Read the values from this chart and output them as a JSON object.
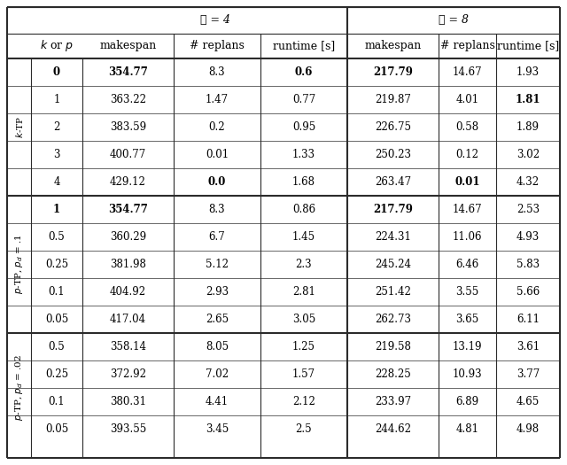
{
  "title_l4": "ℓ = 4",
  "title_l8": "ℓ = 8",
  "rows": [
    {
      "group": 0,
      "k_or_p": "0",
      "l4_makespan": "354.77",
      "l4_replans": "8.3",
      "l4_runtime": "0.6",
      "l8_makespan": "217.79",
      "l8_replans": "14.67",
      "l8_runtime": "1.93",
      "bold": [
        "l4_makespan",
        "l4_runtime",
        "l8_makespan"
      ]
    },
    {
      "group": 0,
      "k_or_p": "1",
      "l4_makespan": "363.22",
      "l4_replans": "1.47",
      "l4_runtime": "0.77",
      "l8_makespan": "219.87",
      "l8_replans": "4.01",
      "l8_runtime": "1.81",
      "bold": [
        "l8_runtime"
      ]
    },
    {
      "group": 0,
      "k_or_p": "2",
      "l4_makespan": "383.59",
      "l4_replans": "0.2",
      "l4_runtime": "0.95",
      "l8_makespan": "226.75",
      "l8_replans": "0.58",
      "l8_runtime": "1.89",
      "bold": []
    },
    {
      "group": 0,
      "k_or_p": "3",
      "l4_makespan": "400.77",
      "l4_replans": "0.01",
      "l4_runtime": "1.33",
      "l8_makespan": "250.23",
      "l8_replans": "0.12",
      "l8_runtime": "3.02",
      "bold": []
    },
    {
      "group": 0,
      "k_or_p": "4",
      "l4_makespan": "429.12",
      "l4_replans": "0.0",
      "l4_runtime": "1.68",
      "l8_makespan": "263.47",
      "l8_replans": "0.01",
      "l8_runtime": "4.32",
      "bold": [
        "l4_replans",
        "l8_replans"
      ]
    },
    {
      "group": 1,
      "k_or_p": "1",
      "l4_makespan": "354.77",
      "l4_replans": "8.3",
      "l4_runtime": "0.86",
      "l8_makespan": "217.79",
      "l8_replans": "14.67",
      "l8_runtime": "2.53",
      "bold": [
        "l4_makespan",
        "l8_makespan"
      ]
    },
    {
      "group": 1,
      "k_or_p": "0.5",
      "l4_makespan": "360.29",
      "l4_replans": "6.7",
      "l4_runtime": "1.45",
      "l8_makespan": "224.31",
      "l8_replans": "11.06",
      "l8_runtime": "4.93",
      "bold": []
    },
    {
      "group": 1,
      "k_or_p": "0.25",
      "l4_makespan": "381.98",
      "l4_replans": "5.12",
      "l4_runtime": "2.3",
      "l8_makespan": "245.24",
      "l8_replans": "6.46",
      "l8_runtime": "5.83",
      "bold": []
    },
    {
      "group": 1,
      "k_or_p": "0.1",
      "l4_makespan": "404.92",
      "l4_replans": "2.93",
      "l4_runtime": "2.81",
      "l8_makespan": "251.42",
      "l8_replans": "3.55",
      "l8_runtime": "5.66",
      "bold": []
    },
    {
      "group": 1,
      "k_or_p": "0.05",
      "l4_makespan": "417.04",
      "l4_replans": "2.65",
      "l4_runtime": "3.05",
      "l8_makespan": "262.73",
      "l8_replans": "3.65",
      "l8_runtime": "6.11",
      "bold": []
    },
    {
      "group": 2,
      "k_or_p": "0.5",
      "l4_makespan": "358.14",
      "l4_replans": "8.05",
      "l4_runtime": "1.25",
      "l8_makespan": "219.58",
      "l8_replans": "13.19",
      "l8_runtime": "3.61",
      "bold": []
    },
    {
      "group": 2,
      "k_or_p": "0.25",
      "l4_makespan": "372.92",
      "l4_replans": "7.02",
      "l4_runtime": "1.57",
      "l8_makespan": "228.25",
      "l8_replans": "10.93",
      "l8_runtime": "3.77",
      "bold": []
    },
    {
      "group": 2,
      "k_or_p": "0.1",
      "l4_makespan": "380.31",
      "l4_replans": "4.41",
      "l4_runtime": "2.12",
      "l8_makespan": "233.97",
      "l8_replans": "6.89",
      "l8_runtime": "4.65",
      "bold": []
    },
    {
      "group": 2,
      "k_or_p": "0.05",
      "l4_makespan": "393.55",
      "l4_replans": "3.45",
      "l4_runtime": "2.5",
      "l8_makespan": "244.62",
      "l8_replans": "4.81",
      "l8_runtime": "4.98",
      "bold": []
    }
  ],
  "group_row_counts": [
    5,
    5,
    4
  ],
  "group_labels": [
    "$k$-TP",
    "$p$-TP, $p_d$ = .1",
    "$p$-TP, $p_d$ = .02"
  ],
  "bg_color": "#ffffff",
  "line_color": "#2b2b2b",
  "font_size": 8.5,
  "header_font_size": 9.0,
  "label_font_size": 7.5
}
